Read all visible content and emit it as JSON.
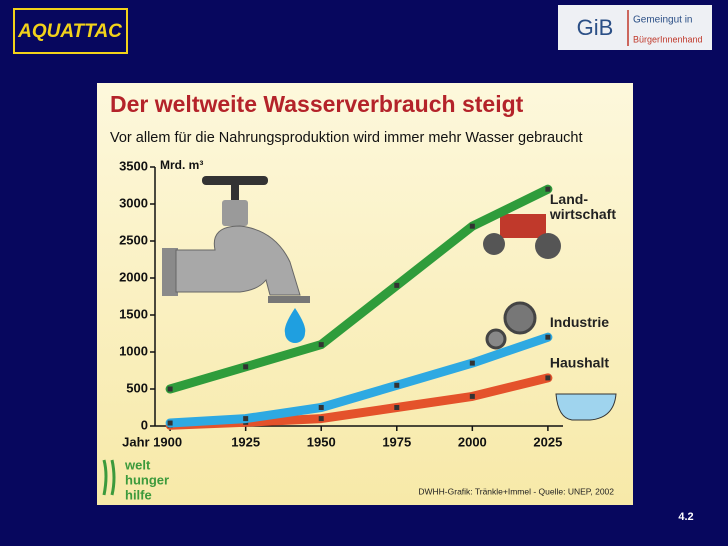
{
  "logo_left": "AQUATTAC",
  "logo_right": {
    "short": "GiB",
    "line1": "Gemeingut in",
    "line2": "BürgerInnenhand"
  },
  "slide_number": "4.2",
  "publisher_logo": [
    "welt",
    "hunger",
    "hilfe"
  ],
  "chart_data": {
    "type": "line",
    "title": "Der weltweite Wasserverbrauch steigt",
    "subtitle": "Vor allem für die Nahrungsproduktion wird immer mehr Wasser gebraucht",
    "y_label": "Mrd. m³",
    "source": "DWHH-Grafik: Tränkle+Immel - Quelle: UNEP, 2002",
    "x": [
      1900,
      1925,
      1950,
      1975,
      2000,
      2025
    ],
    "xlim": [
      1895,
      2030
    ],
    "xticks": [
      {
        "value": 1900,
        "label": "Jahr 1900"
      },
      1925,
      1950,
      1975,
      2000,
      2025
    ],
    "ylim": [
      0,
      3500
    ],
    "yticks": [
      0,
      500,
      1000,
      1500,
      2000,
      2500,
      3000,
      3500
    ],
    "series": [
      {
        "name": "Land-\nwirtschaft",
        "color": "#2f9c3b",
        "values": [
          500,
          800,
          1100,
          1900,
          2700,
          3200
        ]
      },
      {
        "name": "Industrie",
        "color": "#2ea9e2",
        "values": [
          40,
          100,
          250,
          550,
          850,
          1200
        ]
      },
      {
        "name": "Haushalt",
        "color": "#e4522b",
        "values": [
          10,
          50,
          100,
          250,
          400,
          650
        ]
      }
    ]
  }
}
